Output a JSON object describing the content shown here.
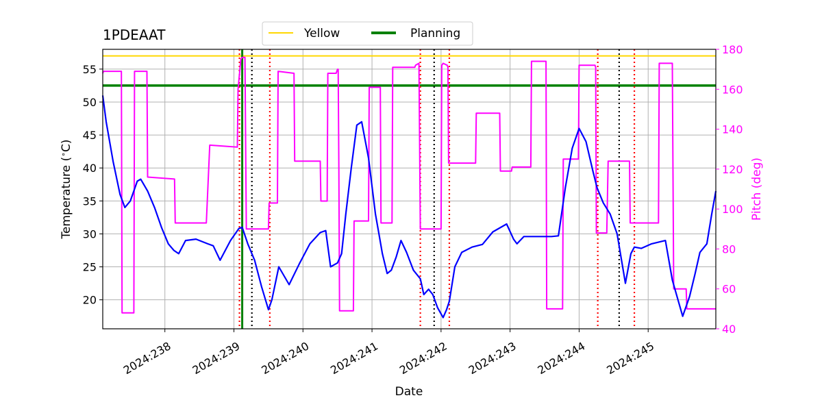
{
  "chart_data": {
    "type": "line",
    "title": "1PDEAAT",
    "xlabel": "Date",
    "ylabel_left": "Temperature ($^\\circ$C)",
    "ylabel_right": "Pitch (deg)",
    "xlim": [
      237.1,
      245.98
    ],
    "ylim_left": [
      15.6,
      58
    ],
    "ylim_right": [
      40,
      180
    ],
    "x_ticks": [
      238,
      239,
      240,
      241,
      242,
      243,
      244,
      245
    ],
    "x_tick_labels": [
      "2024:238",
      "2024:239",
      "2024:240",
      "2024:241",
      "2024:242",
      "2024:243",
      "2024:244",
      "2024:245"
    ],
    "y_left_ticks": [
      20,
      25,
      30,
      35,
      40,
      45,
      50,
      55
    ],
    "y_left_tick_labels": [
      "20",
      "25",
      "30",
      "35",
      "40",
      "45",
      "50",
      "55"
    ],
    "y_right_ticks": [
      40,
      60,
      80,
      100,
      120,
      140,
      160,
      180
    ],
    "y_right_tick_labels": [
      "40",
      "60",
      "80",
      "100",
      "120",
      "140",
      "160",
      "180"
    ],
    "grid": true,
    "legend_position": "top-center",
    "legend": [
      {
        "name": "Yellow",
        "color": "#ffd700"
      },
      {
        "name": "Planning",
        "color": "#008000"
      }
    ],
    "hlines": [
      {
        "name": "Yellow",
        "y": 57,
        "color": "#ffd700"
      },
      {
        "name": "Planning",
        "y": 52.5,
        "color": "#008000"
      }
    ],
    "vline_solid": [
      {
        "x": 239.12,
        "color": "#008000"
      }
    ],
    "vlines_dotted_red": [
      239.08,
      239.52,
      241.7,
      242.12,
      244.27,
      244.8
    ],
    "vlines_dotted_black": [
      239.26,
      241.9,
      244.58
    ],
    "temperature": {
      "color": "#0000ff",
      "x": [
        237.1,
        237.15,
        237.25,
        237.35,
        237.42,
        237.5,
        237.6,
        237.65,
        237.75,
        237.85,
        237.95,
        238.05,
        238.13,
        238.2,
        238.3,
        238.45,
        238.62,
        238.7,
        238.8,
        238.95,
        239.07,
        239.12,
        239.2,
        239.3,
        239.4,
        239.5,
        239.55,
        239.65,
        239.8,
        239.95,
        240.1,
        240.25,
        240.33,
        240.4,
        240.5,
        240.56,
        240.62,
        240.7,
        240.78,
        240.85,
        240.95,
        241.05,
        241.1,
        241.15,
        241.22,
        241.28,
        241.35,
        241.42,
        241.5,
        241.6,
        241.7,
        241.75,
        241.82,
        241.88,
        241.95,
        242.03,
        242.08,
        242.12,
        242.2,
        242.3,
        242.45,
        242.6,
        242.75,
        242.95,
        243.05,
        243.1,
        243.2,
        243.4,
        243.6,
        243.7,
        243.8,
        243.9,
        244.0,
        244.1,
        244.2,
        244.26,
        244.35,
        244.45,
        244.55,
        244.67,
        244.75,
        244.8,
        244.9,
        245.05,
        245.25,
        245.35,
        245.5,
        245.6,
        245.68,
        245.75,
        245.85,
        245.92,
        245.98
      ],
      "y": [
        51,
        47,
        41,
        36,
        34,
        35,
        38,
        38.3,
        36.5,
        34,
        31,
        28.5,
        27.5,
        27,
        29,
        29.2,
        28.5,
        28.2,
        26,
        29,
        30.8,
        31,
        28.5,
        26,
        22,
        18.5,
        20,
        25,
        22.3,
        25.5,
        28.5,
        30.2,
        30.5,
        25,
        25.6,
        27,
        33,
        40,
        46.5,
        47,
        41.5,
        33,
        30,
        27,
        24,
        24.5,
        26.5,
        29,
        27.2,
        24.5,
        23.2,
        20.8,
        21.6,
        20.8,
        18.8,
        17.3,
        18.5,
        19.8,
        25,
        27.2,
        28,
        28.4,
        30.3,
        31.5,
        29.2,
        28.5,
        29.6,
        29.6,
        29.6,
        29.7,
        37,
        43,
        46,
        44,
        39.5,
        37,
        34.7,
        33,
        30,
        22.5,
        27,
        28,
        27.8,
        28.5,
        29,
        23,
        17.5,
        20.5,
        24,
        27.2,
        28.5,
        33,
        36.5
      ]
    },
    "pitch": {
      "color": "#ff00ff",
      "x": [
        237.1,
        237.11,
        237.37,
        237.38,
        237.55,
        237.56,
        237.74,
        237.75,
        238.14,
        238.15,
        238.6,
        238.65,
        239.05,
        239.06,
        239.1,
        239.12,
        239.14,
        239.16,
        239.18,
        239.5,
        239.51,
        239.63,
        239.64,
        239.87,
        239.88,
        240.25,
        240.26,
        240.35,
        240.36,
        240.48,
        240.5,
        240.51,
        240.52,
        240.53,
        240.73,
        240.74,
        240.95,
        240.96,
        241.12,
        241.13,
        241.29,
        241.3,
        241.62,
        241.63,
        241.68,
        241.7,
        241.72,
        241.76,
        241.77,
        242.0,
        242.01,
        242.03,
        242.09,
        242.1,
        242.11,
        242.12,
        242.13,
        242.5,
        242.51,
        242.85,
        242.86,
        243.02,
        243.03,
        243.3,
        243.31,
        243.52,
        243.53,
        243.76,
        243.77,
        243.99,
        244.0,
        244.23,
        244.24,
        244.25,
        244.4,
        244.42,
        244.73,
        244.74,
        245.15,
        245.16,
        245.35,
        245.37,
        245.55,
        245.56,
        245.7,
        245.71,
        245.87,
        245.88,
        245.92,
        245.93,
        245.98
      ],
      "y": [
        168,
        169,
        169,
        48,
        48,
        169,
        169,
        116,
        115,
        93,
        93,
        132,
        131,
        160,
        175,
        176,
        176,
        176,
        90,
        90,
        103,
        103,
        169,
        168,
        124,
        124,
        104,
        104,
        168,
        168,
        170,
        170,
        120,
        49,
        49,
        94,
        94,
        161,
        161,
        93,
        93,
        171,
        171,
        172,
        173,
        90,
        90,
        90,
        90,
        90,
        172,
        173,
        172,
        171,
        123,
        123,
        123,
        123,
        148,
        148,
        119,
        119,
        121,
        121,
        174,
        174,
        50,
        50,
        125,
        125,
        172,
        172,
        171,
        88,
        88,
        124,
        124,
        93,
        93,
        173,
        173,
        60,
        60,
        50,
        50,
        50,
        50,
        50,
        50,
        50,
        50
      ]
    }
  }
}
